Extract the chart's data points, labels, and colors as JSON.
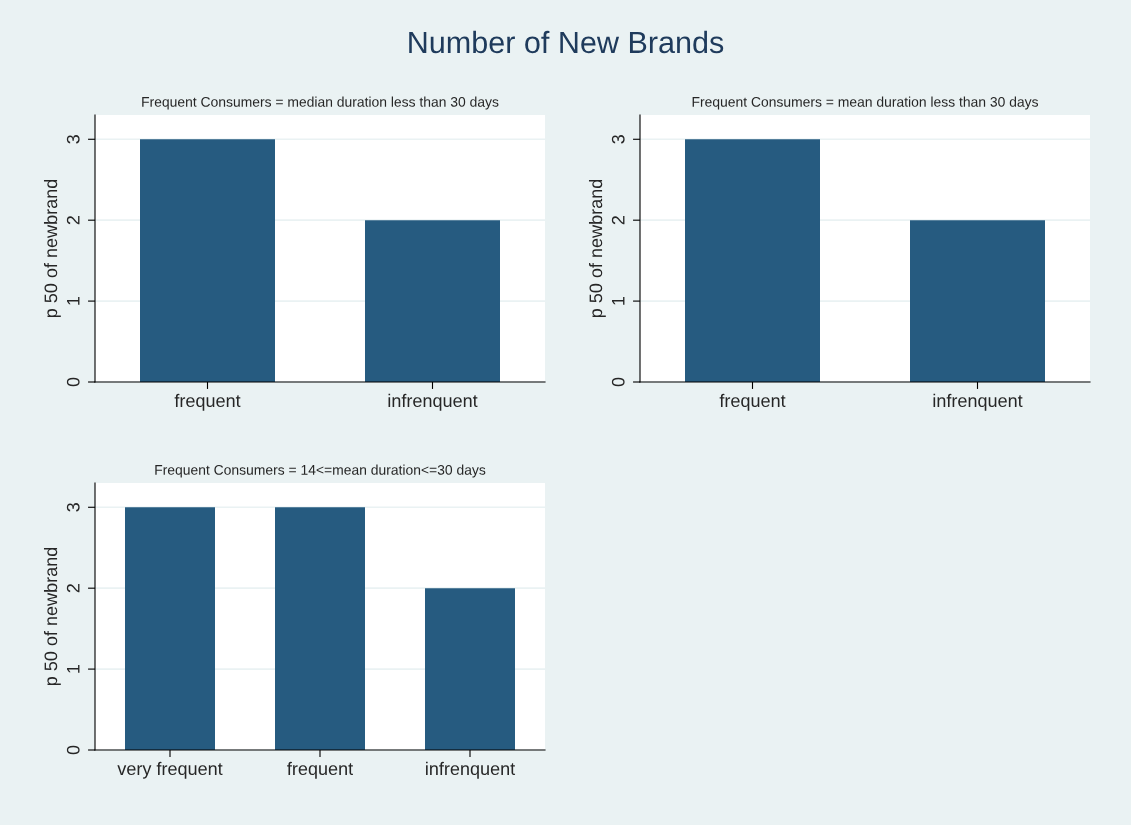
{
  "chart_data": [
    {
      "type": "bar",
      "title": "Number of New Brands",
      "subtitle": "Frequent Consumers = median duration less than 30 days",
      "ylabel": "p 50 of newbrand",
      "categories": [
        "frequent",
        "infrenquent"
      ],
      "values": [
        3,
        2
      ],
      "color": "#265b80",
      "ylim": [
        0,
        3.3
      ],
      "yticks": [
        0,
        1,
        2,
        3
      ],
      "grid": "y"
    },
    {
      "type": "bar",
      "subtitle": "Frequent Consumers = mean duration less than 30 days",
      "ylabel": "p 50 of newbrand",
      "categories": [
        "frequent",
        "infrenquent"
      ],
      "values": [
        3,
        2
      ],
      "color": "#265b80",
      "ylim": [
        0,
        3.3
      ],
      "yticks": [
        0,
        1,
        2,
        3
      ],
      "grid": "y"
    },
    {
      "type": "bar",
      "subtitle": "Frequent Consumers = 14<=mean duration<=30 days",
      "ylabel": "p 50 of newbrand",
      "categories": [
        "very frequent",
        "frequent",
        "infrenquent"
      ],
      "values": [
        3,
        3,
        2
      ],
      "color": "#265b80",
      "ylim": [
        0,
        3.3
      ],
      "yticks": [
        0,
        1,
        2,
        3
      ],
      "grid": "y"
    }
  ]
}
